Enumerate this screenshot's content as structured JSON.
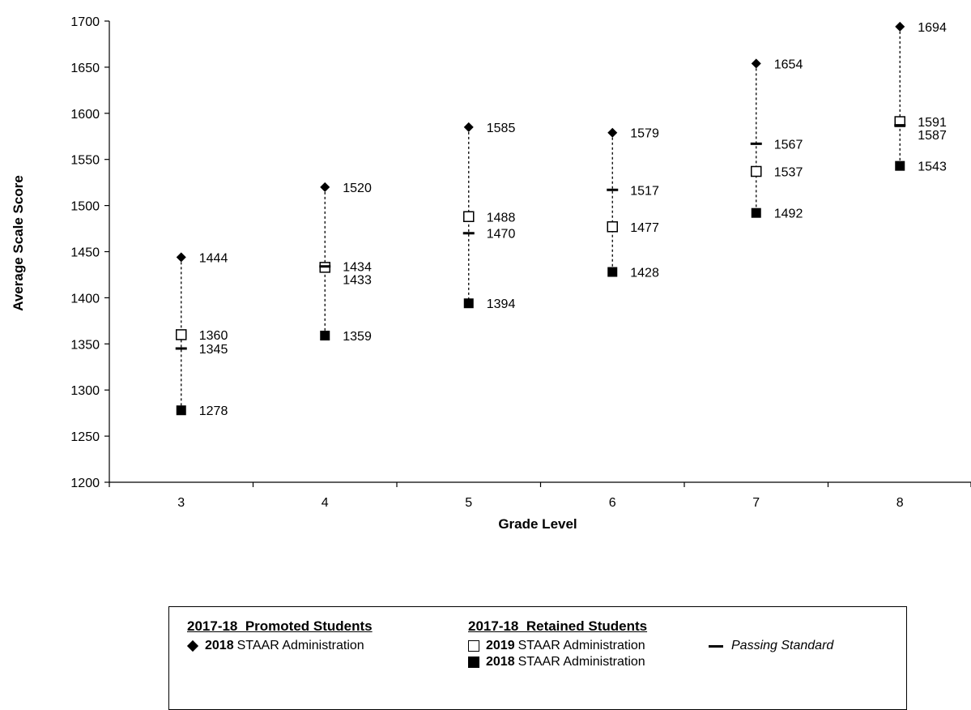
{
  "chart_data": {
    "type": "scatter",
    "title": "",
    "xlabel": "Grade Level",
    "ylabel": "Average Scale Score",
    "ylim": [
      1200,
      1700
    ],
    "yticks": [
      1200,
      1250,
      1300,
      1350,
      1400,
      1450,
      1500,
      1550,
      1600,
      1650,
      1700
    ],
    "categories": [
      "3",
      "4",
      "5",
      "6",
      "7",
      "8"
    ],
    "grid": false,
    "series": [
      {
        "name": "2018 STAAR Administration (Promoted)",
        "marker": "diamond",
        "values": [
          1444,
          1520,
          1585,
          1579,
          1654,
          1694
        ]
      },
      {
        "name": "2019 STAAR Administration (Retained)",
        "marker": "open-square",
        "values": [
          1360,
          1433,
          1488,
          1477,
          1537,
          1591
        ]
      },
      {
        "name": "Passing Standard",
        "marker": "dash",
        "values": [
          1345,
          1434,
          1470,
          1517,
          1567,
          1587
        ]
      },
      {
        "name": "2018 STAAR Administration (Retained)",
        "marker": "filled-square",
        "values": [
          1278,
          1359,
          1394,
          1428,
          1492,
          1543
        ]
      }
    ]
  },
  "legend": {
    "promoted_heading": "2017-18  Promoted Students",
    "retained_heading": "2017-18  Retained Students",
    "promoted_item_year": "2018",
    "promoted_item_text": "STAAR Administration",
    "retained_item1_year": "2019",
    "retained_item1_text": "STAAR Administration",
    "retained_item2_year": "2018",
    "retained_item2_text": "STAAR Administration",
    "passing_text": "Passing Standard"
  }
}
